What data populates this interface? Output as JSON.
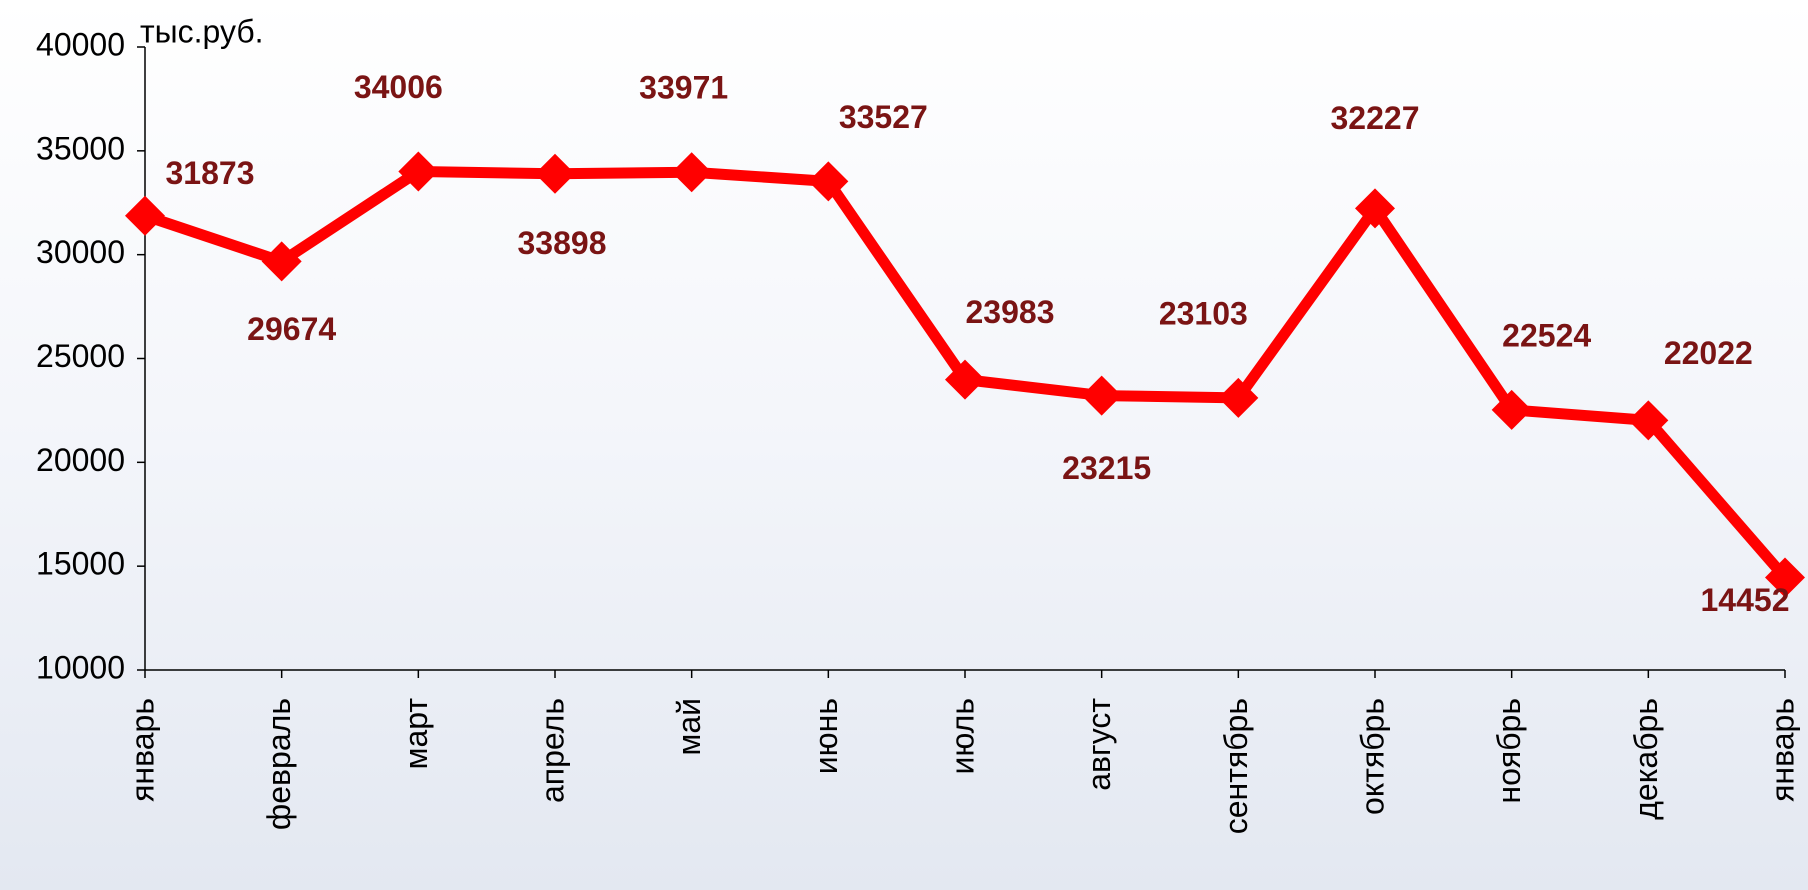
{
  "chart_data": {
    "type": "line",
    "y_label": "тыс.руб.",
    "categories": [
      "январь",
      "февраль",
      "март",
      "апрель",
      "май",
      "июнь",
      "июль",
      "август",
      "сентябрь",
      "октябрь",
      "ноябрь",
      "декабрь",
      "январь"
    ],
    "series": [
      {
        "color": "#ff0000",
        "values": [
          31873,
          29674,
          34006,
          33898,
          33971,
          33527,
          23983,
          23215,
          23103,
          32227,
          22524,
          22022,
          14452
        ]
      }
    ],
    "ylim": [
      10000,
      40000
    ],
    "yticks": [
      10000,
      15000,
      20000,
      25000,
      30000,
      35000,
      40000
    ],
    "grid": false
  }
}
